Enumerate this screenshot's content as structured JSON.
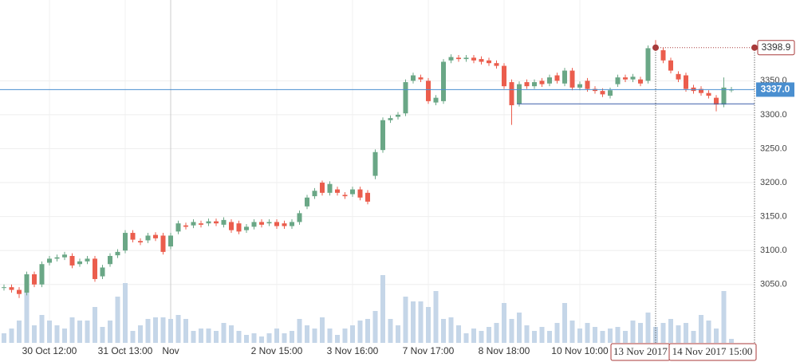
{
  "chart_data": {
    "type": "candlestick",
    "categories": [
      null,
      null,
      null,
      null,
      null,
      null,
      "30 Oct 12:00",
      null,
      null,
      null,
      null,
      null,
      null,
      null,
      null,
      null,
      "31 Oct 13:00",
      null,
      null,
      null,
      null,
      null,
      "Nov",
      null,
      null,
      null,
      null,
      null,
      null,
      null,
      null,
      null,
      null,
      null,
      null,
      null,
      "2 Nov 15:00",
      null,
      null,
      null,
      null,
      null,
      null,
      null,
      null,
      null,
      "3 Nov 16:00",
      null,
      null,
      null,
      null,
      null,
      null,
      null,
      null,
      null,
      "7 Nov 17:00",
      null,
      null,
      null,
      null,
      null,
      null,
      null,
      null,
      null,
      "8 Nov 18:00",
      null,
      null,
      null,
      null,
      null,
      null,
      null,
      null,
      null,
      "10 Nov 10:00",
      null,
      null,
      null,
      null,
      null,
      null,
      null,
      null,
      null,
      null,
      null,
      null,
      null,
      null,
      null,
      null,
      null,
      null,
      null,
      null
    ],
    "open": [
      3045,
      3046,
      3042,
      3038,
      3065,
      3050,
      3082,
      3088,
      3090,
      3092,
      3080,
      3084,
      3088,
      3062,
      3080,
      3093,
      3100,
      3126,
      3114,
      3115,
      3123,
      3122,
      3106,
      3128,
      3137,
      3137,
      3140,
      3140,
      3143,
      3138,
      3142,
      3140,
      3130,
      3135,
      3142,
      3140,
      3142,
      3140,
      3136,
      3142,
      3165,
      3180,
      3200,
      3185,
      3190,
      3182,
      3183,
      3190,
      3185,
      3210,
      3248,
      3292,
      3297,
      3302,
      3350,
      3355,
      3350,
      3318,
      3320,
      3380,
      3384,
      3382,
      3384,
      3382,
      3380,
      3376,
      3372,
      3348,
      3316,
      3348,
      3342,
      3350,
      3346,
      3358,
      3346,
      3365,
      3340,
      3350,
      3338,
      3335,
      3328,
      3345,
      3355,
      3352,
      3352,
      3350,
      3400,
      3395,
      3380,
      3360,
      3358,
      3340,
      3338,
      3332,
      3325,
      3315,
      3337
    ],
    "high": [
      3050,
      3050,
      3046,
      3069,
      3069,
      3084,
      3092,
      3094,
      3098,
      3096,
      3088,
      3092,
      3092,
      3079,
      3096,
      3102,
      3130,
      3130,
      3118,
      3126,
      3127,
      3126,
      3126,
      3144,
      3141,
      3146,
      3144,
      3147,
      3147,
      3149,
      3146,
      3144,
      3139,
      3146,
      3146,
      3146,
      3146,
      3144,
      3146,
      3159,
      3182,
      3192,
      3203,
      3202,
      3194,
      3186,
      3194,
      3194,
      3189,
      3249,
      3296,
      3299,
      3304,
      3352,
      3362,
      3359,
      3354,
      3329,
      3382,
      3389,
      3388,
      3388,
      3388,
      3386,
      3384,
      3380,
      3376,
      3352,
      3349,
      3352,
      3352,
      3354,
      3359,
      3362,
      3369,
      3369,
      3349,
      3354,
      3342,
      3339,
      3340,
      3359,
      3359,
      3360,
      3356,
      3402,
      3410,
      3399,
      3384,
      3364,
      3362,
      3344,
      3342,
      3336,
      3329,
      3355,
      3341
    ],
    "low": [
      3041,
      3038,
      3030,
      3034,
      3046,
      3046,
      3078,
      3084,
      3086,
      3074,
      3076,
      3080,
      3054,
      3058,
      3076,
      3089,
      3096,
      3112,
      3108,
      3111,
      3114,
      3094,
      3102,
      3124,
      3131,
      3133,
      3134,
      3136,
      3136,
      3134,
      3126,
      3124,
      3126,
      3131,
      3134,
      3136,
      3132,
      3132,
      3132,
      3138,
      3161,
      3176,
      3181,
      3181,
      3181,
      3176,
      3179,
      3174,
      3168,
      3205,
      3244,
      3288,
      3293,
      3298,
      3346,
      3348,
      3316,
      3314,
      3316,
      3376,
      3378,
      3378,
      3376,
      3374,
      3372,
      3368,
      3338,
      3285,
      3312,
      3338,
      3338,
      3341,
      3342,
      3346,
      3342,
      3336,
      3336,
      3334,
      3331,
      3326,
      3324,
      3341,
      3348,
      3348,
      3342,
      3346,
      3394,
      3376,
      3361,
      3348,
      3334,
      3331,
      3328,
      3324,
      3305,
      3311,
      3333
    ],
    "close": [
      3046,
      3042,
      3036,
      3065,
      3050,
      3080,
      3088,
      3090,
      3094,
      3078,
      3084,
      3088,
      3058,
      3075,
      3092,
      3098,
      3126,
      3116,
      3112,
      3122,
      3118,
      3098,
      3122,
      3140,
      3135,
      3142,
      3138,
      3143,
      3140,
      3145,
      3130,
      3128,
      3135,
      3142,
      3138,
      3142,
      3136,
      3136,
      3142,
      3155,
      3178,
      3188,
      3185,
      3198,
      3185,
      3180,
      3190,
      3178,
      3172,
      3245,
      3292,
      3295,
      3300,
      3348,
      3358,
      3352,
      3320,
      3325,
      3378,
      3385,
      3382,
      3384,
      3380,
      3378,
      3376,
      3372,
      3342,
      3314,
      3345,
      3342,
      3348,
      3345,
      3355,
      3350,
      3365,
      3340,
      3345,
      3338,
      3335,
      3330,
      3336,
      3355,
      3352,
      3356,
      3346,
      3398,
      3398,
      3380,
      3365,
      3352,
      3338,
      3335,
      3332,
      3328,
      3315,
      3340,
      3337
    ],
    "volume": [
      12,
      18,
      28,
      65,
      22,
      35,
      28,
      22,
      18,
      32,
      28,
      28,
      45,
      20,
      28,
      58,
      75,
      15,
      22,
      30,
      32,
      32,
      30,
      35,
      30,
      15,
      18,
      18,
      15,
      25,
      22,
      15,
      10,
      12,
      8,
      12,
      18,
      12,
      15,
      30,
      22,
      18,
      32,
      18,
      10,
      18,
      22,
      28,
      30,
      40,
      85,
      30,
      22,
      58,
      52,
      52,
      45,
      65,
      30,
      32,
      22,
      12,
      18,
      15,
      20,
      25,
      50,
      30,
      38,
      22,
      15,
      20,
      15,
      25,
      50,
      28,
      18,
      25,
      20,
      15,
      18,
      20,
      15,
      28,
      25,
      38,
      20,
      25,
      30,
      22,
      25,
      15,
      35,
      28,
      18,
      65,
      5
    ],
    "up_color": "#6aa786",
    "down_color": "#eb5d4d",
    "volume_color": "#c5d6e8",
    "ylim": [
      2964,
      3469
    ],
    "yticks": [
      {
        "value": 3050,
        "label": "3050.0"
      },
      {
        "value": 3100,
        "label": "3100.0"
      },
      {
        "value": 3150,
        "label": "3150.0"
      },
      {
        "value": 3200,
        "label": "3200.0"
      },
      {
        "value": 3250,
        "label": "3250.0"
      },
      {
        "value": 3300,
        "label": "3300.0"
      },
      {
        "value": 3350,
        "label": "3350.0"
      }
    ],
    "y2lim": [
      0,
      430
    ],
    "grid": true,
    "last_price": {
      "value": 3337,
      "label": "3337.0",
      "color": "#4a8fd0"
    },
    "trendline_value": 3316,
    "measure": {
      "start_label": "13 Nov 2017",
      "end_label": "14 Nov 2017 15:00",
      "price": 3398.9,
      "price_label": "3398.9",
      "color": "#a83a3a"
    }
  }
}
